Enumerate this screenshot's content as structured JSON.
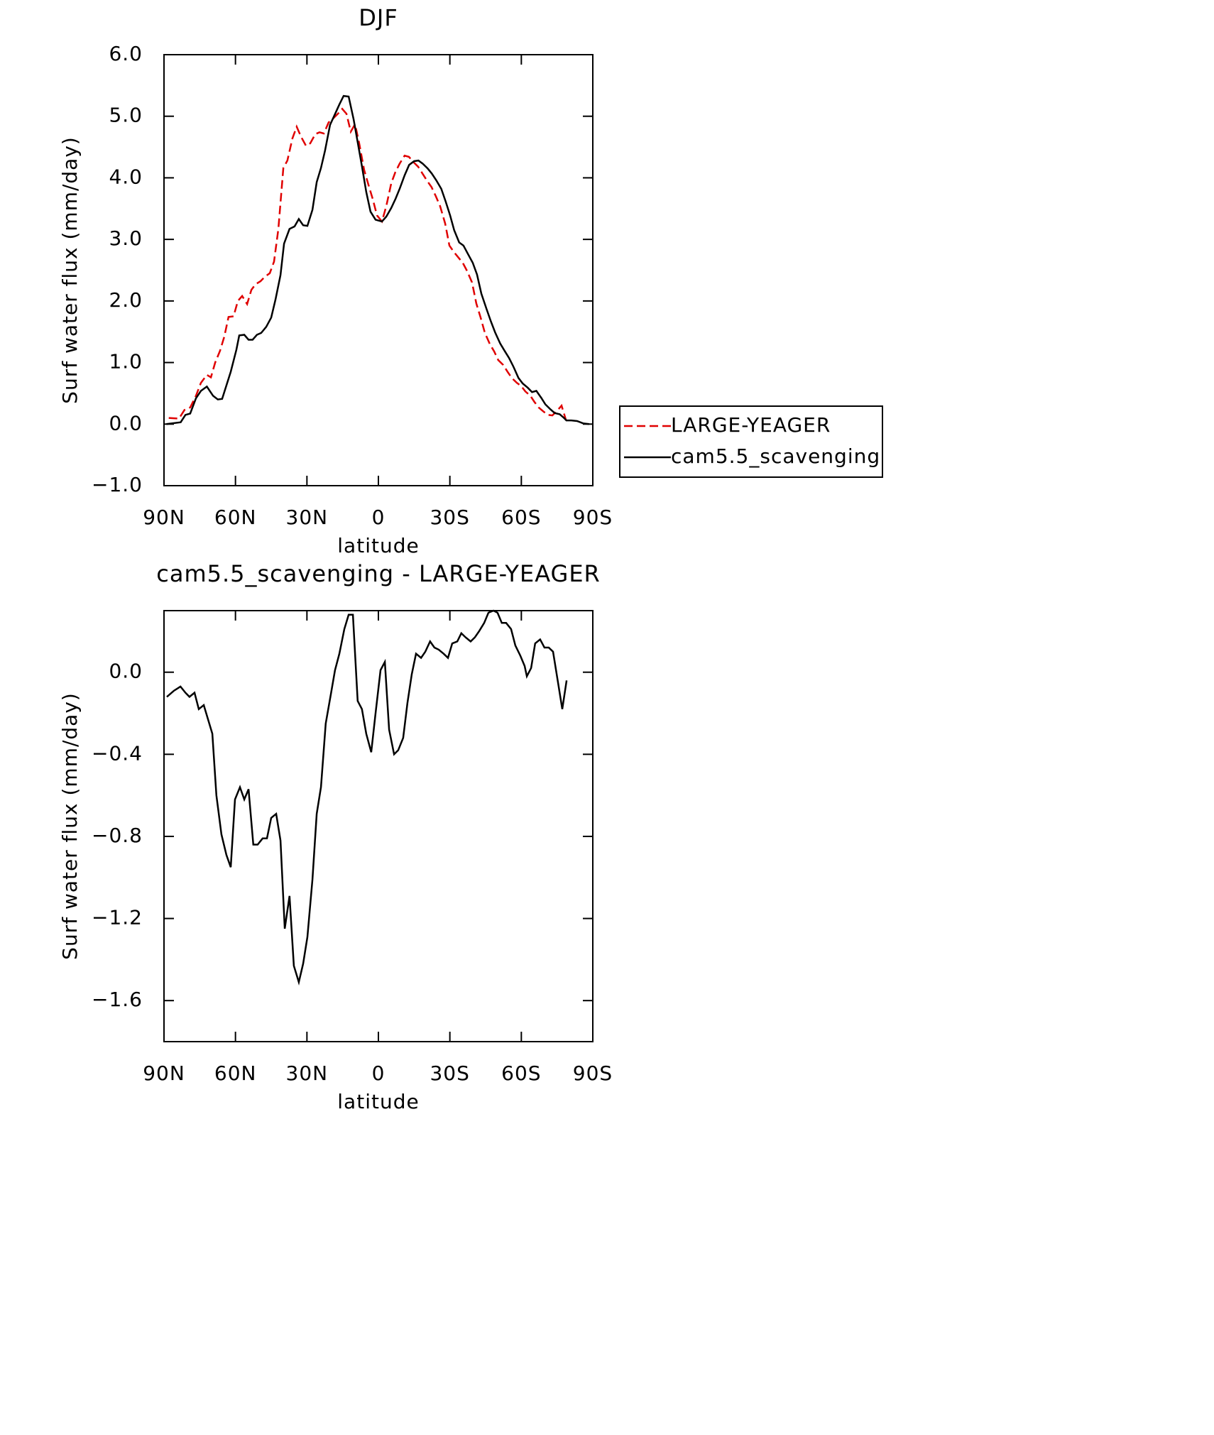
{
  "chart_data": [
    {
      "type": "line",
      "title": "DJF",
      "xlabel": "latitude",
      "ylabel": "Surf water flux (mm/day)",
      "xlim": [
        90,
        -90
      ],
      "xticks": [
        {
          "value": 90,
          "label": "90N"
        },
        {
          "value": 60,
          "label": "60N"
        },
        {
          "value": 30,
          "label": "30N"
        },
        0,
        {
          "value": -30,
          "label": "30S"
        },
        {
          "value": -60,
          "label": "60S"
        },
        {
          "value": -90,
          "label": "90S"
        }
      ],
      "ylim": [
        -1,
        6
      ],
      "yticks": [
        {
          "value": 6,
          "label": "6.0"
        },
        {
          "value": 5,
          "label": "5.0"
        },
        {
          "value": 4,
          "label": "4.0"
        },
        {
          "value": 3,
          "label": "3.0"
        },
        {
          "value": 2,
          "label": "2.0"
        },
        {
          "value": 1,
          "label": "1.0"
        },
        {
          "value": 0,
          "label": "0.0"
        },
        {
          "value": -1,
          "label": "−1.0"
        }
      ],
      "legend": "right",
      "series": [
        {
          "name": "LARGE-YEAGER",
          "color": "#e00000",
          "dash": true,
          "x": [
            88,
            83.7,
            81.4,
            79,
            76.6,
            74.5,
            72,
            70.3,
            68.5,
            66.5,
            64.7,
            62.9,
            60.8,
            59,
            57.2,
            55.1,
            53.3,
            51.6,
            49.5,
            47.7,
            45.6,
            43.8,
            42,
            39.9,
            38.2,
            36.1,
            34.3,
            32.5,
            30.4,
            28.6,
            26.5,
            24.7,
            22.9,
            20.9,
            19.1,
            17,
            15.2,
            13.4,
            11.6,
            9.8,
            8.1,
            6,
            4.2,
            2.4,
            0.6,
            -1.5,
            -3.3,
            -5.4,
            -7.1,
            -8.9,
            -11,
            -12.8,
            -14.6,
            -16.7,
            -18.5,
            -20.3,
            -22.3,
            -24.1,
            -25.9,
            -28,
            -29.8,
            -31.6,
            -33.7,
            -35.4,
            -37.2,
            -39.3,
            -41.1,
            -42.9,
            -44.7,
            -46.8,
            -48.6,
            -50.3,
            -52.4,
            -54.2,
            -56,
            -58.1,
            -59.9,
            -61.7,
            -63.8,
            -65.5,
            -67.3,
            -69.4,
            -71.2,
            -73,
            -75.1,
            -76.9,
            -78.7
          ],
          "values": [
            0.1,
            0.09,
            0.23,
            0.27,
            0.46,
            0.67,
            0.8,
            0.76,
            1.0,
            1.19,
            1.42,
            1.74,
            1.75,
            2.0,
            2.08,
            1.95,
            2.18,
            2.27,
            2.32,
            2.39,
            2.45,
            2.64,
            3.17,
            4.16,
            4.28,
            4.64,
            4.83,
            4.67,
            4.52,
            4.56,
            4.71,
            4.74,
            4.72,
            4.9,
            4.96,
            5.04,
            5.12,
            5.04,
            4.75,
            4.87,
            4.57,
            4.13,
            3.89,
            3.66,
            3.39,
            3.29,
            3.54,
            3.91,
            4.09,
            4.23,
            4.36,
            4.34,
            4.26,
            4.18,
            4.07,
            3.96,
            3.85,
            3.7,
            3.54,
            3.26,
            2.9,
            2.8,
            2.7,
            2.62,
            2.49,
            2.3,
            1.96,
            1.73,
            1.48,
            1.3,
            1.18,
            1.04,
            0.96,
            0.85,
            0.75,
            0.67,
            0.62,
            0.53,
            0.46,
            0.36,
            0.27,
            0.2,
            0.15,
            0.14,
            0.22,
            0.3,
            0.07
          ]
        },
        {
          "name": "cam5.5_scavenging",
          "color": "#000000",
          "dash": false,
          "x": [
            89,
            83,
            81,
            79,
            76.6,
            74.5,
            72,
            69.4,
            67.4,
            65.6,
            62,
            59.6,
            58.4,
            56.3,
            54.5,
            52.8,
            51,
            49.2,
            47.1,
            45,
            43.2,
            41.1,
            39.6,
            37.3,
            35.2,
            33.4,
            31.6,
            29.8,
            27.7,
            25.9,
            24.1,
            22.4,
            20.3,
            18.5,
            16.4,
            14.6,
            12.5,
            10.4,
            8.7,
            6.9,
            5.1,
            3.3,
            1.2,
            -1.5,
            -3.3,
            -5.4,
            -7.2,
            -9,
            -11,
            -12.9,
            -15,
            -16.8,
            -18.6,
            -20.7,
            -22.4,
            -24.3,
            -26.4,
            -28.2,
            -30.1,
            -31.8,
            -33.9,
            -35.7,
            -37.5,
            -39.6,
            -41.4,
            -43.2,
            -45.4,
            -47.2,
            -49,
            -51.1,
            -52.8,
            -54.9,
            -56.7,
            -58.8,
            -60.6,
            -62.7,
            -64.5,
            -66.3,
            -68.3,
            -70.1,
            -72.2,
            -74,
            -76.1,
            -77.9,
            -78.9,
            -81,
            -83.4,
            -86.1,
            -88.5
          ],
          "values": [
            0,
            0.03,
            0.15,
            0.17,
            0.42,
            0.54,
            0.61,
            0.46,
            0.4,
            0.41,
            0.85,
            1.21,
            1.44,
            1.45,
            1.37,
            1.37,
            1.45,
            1.48,
            1.58,
            1.73,
            2.02,
            2.42,
            2.93,
            3.17,
            3.21,
            3.33,
            3.23,
            3.22,
            3.48,
            3.93,
            4.16,
            4.44,
            4.86,
            5.01,
            5.19,
            5.33,
            5.32,
            4.95,
            4.58,
            4.19,
            3.77,
            3.45,
            3.32,
            3.29,
            3.37,
            3.51,
            3.66,
            3.83,
            4.04,
            4.21,
            4.27,
            4.28,
            4.23,
            4.15,
            4.07,
            3.96,
            3.82,
            3.62,
            3.39,
            3.15,
            2.95,
            2.9,
            2.77,
            2.62,
            2.43,
            2.12,
            1.87,
            1.67,
            1.49,
            1.31,
            1.2,
            1.07,
            0.93,
            0.75,
            0.66,
            0.59,
            0.52,
            0.54,
            0.43,
            0.32,
            0.24,
            0.18,
            0.16,
            0.1,
            0.06,
            0.06,
            0.05,
            0.01,
            0
          ]
        }
      ]
    },
    {
      "type": "line",
      "title": "cam5.5_scavenging - LARGE-YEAGER",
      "xlabel": "latitude",
      "ylabel": "Surf water flux (mm/day)",
      "xlim": [
        90,
        -90
      ],
      "xticks": [
        {
          "value": 90,
          "label": "90N"
        },
        {
          "value": 60,
          "label": "60N"
        },
        {
          "value": 30,
          "label": "30N"
        },
        0,
        {
          "value": -30,
          "label": "30S"
        },
        {
          "value": -60,
          "label": "60S"
        },
        {
          "value": -90,
          "label": "90S"
        }
      ],
      "ylim": [
        -1.8,
        0.3
      ],
      "yticks": [
        {
          "value": 0,
          "label": "0.0"
        },
        {
          "value": -0.4,
          "label": "−0.4"
        },
        {
          "value": -0.8,
          "label": "−0.8"
        },
        {
          "value": -1.2,
          "label": "−1.2"
        },
        {
          "value": -1.6,
          "label": "−1.6"
        }
      ],
      "series": [
        {
          "color": "#000000",
          "dash": false,
          "x": [
            88.8,
            85.8,
            83.1,
            81,
            79.3,
            77.2,
            75.4,
            73.3,
            69.7,
            68,
            65.9,
            63.8,
            62,
            60.2,
            58.1,
            56.3,
            54.5,
            52.5,
            50.7,
            48.6,
            46.8,
            45,
            42.9,
            41.1,
            39.3,
            37.3,
            35.5,
            33.4,
            31.6,
            29.8,
            27.7,
            25.9,
            24.1,
            22.1,
            20,
            18.2,
            16.4,
            14.3,
            12.5,
            10.7,
            8.7,
            6.9,
            5.1,
            3,
            1.2,
            -0.9,
            -2.7,
            -4.5,
            -6.6,
            -8.3,
            -10.4,
            -12.2,
            -14,
            -15.8,
            -17.9,
            -19.7,
            -21.7,
            -23.5,
            -25.3,
            -27.4,
            -29.2,
            -31,
            -33.1,
            -34.8,
            -36.6,
            -38.7,
            -40.5,
            -42.3,
            -44.4,
            -46.2,
            -48.3,
            -50,
            -51.8,
            -53.6,
            -55.7,
            -57.5,
            -59.6,
            -61.4,
            -62.3,
            -64.1,
            -65.8,
            -67.9,
            -69.7,
            -71.5,
            -73.3,
            -75.4,
            -77.2,
            -79
          ],
          "values": [
            -0.12,
            -0.09,
            -0.07,
            -0.1,
            -0.12,
            -0.1,
            -0.18,
            -0.16,
            -0.3,
            -0.6,
            -0.79,
            -0.89,
            -0.95,
            -0.62,
            -0.56,
            -0.62,
            -0.57,
            -0.84,
            -0.84,
            -0.81,
            -0.81,
            -0.71,
            -0.69,
            -0.82,
            -1.25,
            -1.09,
            -1.43,
            -1.51,
            -1.42,
            -1.29,
            -1.01,
            -0.69,
            -0.56,
            -0.25,
            -0.11,
            0.01,
            0.09,
            0.21,
            0.28,
            0.28,
            -0.14,
            -0.18,
            -0.3,
            -0.39,
            -0.2,
            0.01,
            0.05,
            -0.28,
            -0.4,
            -0.38,
            -0.32,
            -0.15,
            -0.01,
            0.09,
            0.07,
            0.1,
            0.15,
            0.12,
            0.11,
            0.09,
            0.07,
            0.14,
            0.15,
            0.19,
            0.17,
            0.15,
            0.17,
            0.2,
            0.24,
            0.29,
            0.3,
            0.29,
            0.24,
            0.24,
            0.21,
            0.13,
            0.08,
            0.03,
            -0.02,
            0.02,
            0.14,
            0.16,
            0.12,
            0.12,
            0.1,
            -0.05,
            -0.18,
            -0.04
          ]
        }
      ]
    }
  ]
}
